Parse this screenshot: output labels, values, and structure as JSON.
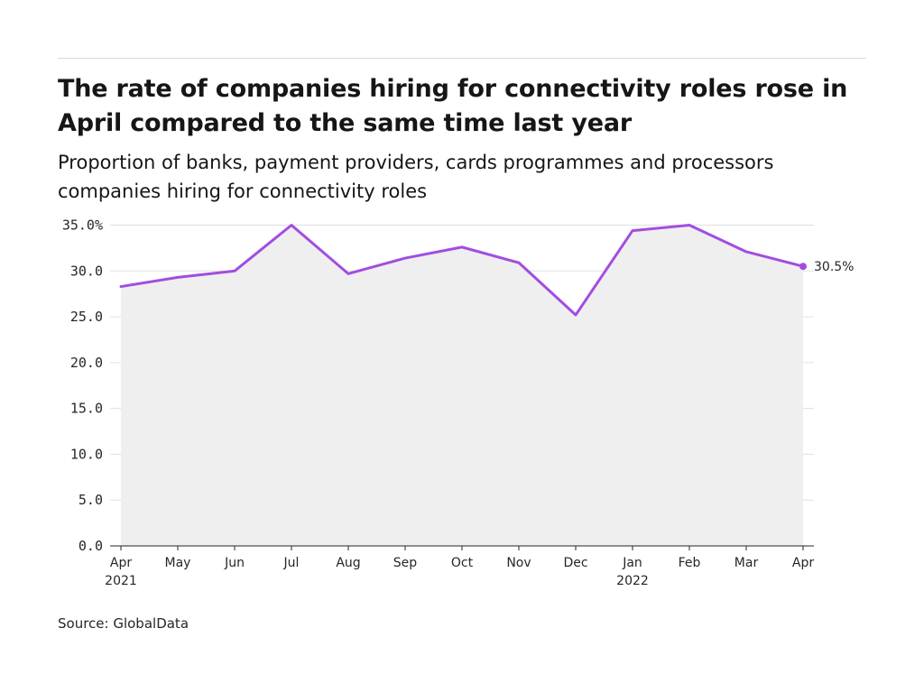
{
  "header": {
    "title": "The rate of companies hiring for connectivity roles rose in April compared to the same time last year",
    "subtitle": "Proportion of banks, payment providers, cards programmes and processors companies hiring for connectivity roles"
  },
  "footer": {
    "source": "Source: GlobalData"
  },
  "colors": {
    "line": "#a24de0",
    "area": "#efefef",
    "grid": "#e0e0e0",
    "axis": "#262626"
  },
  "chart_data": {
    "type": "line",
    "title": "The rate of companies hiring for connectivity roles rose in April compared to the same time last year",
    "subtitle": "Proportion of banks, payment providers, cards programmes and processors companies hiring for connectivity roles",
    "categories": [
      "Apr 2021",
      "May",
      "Jun",
      "Jul",
      "Aug",
      "Sep",
      "Oct",
      "Nov",
      "Dec",
      "Jan 2022",
      "Feb",
      "Mar",
      "Apr"
    ],
    "x_tick_labels": [
      [
        "Apr",
        "2021"
      ],
      [
        "May"
      ],
      [
        "Jun"
      ],
      [
        "Jul"
      ],
      [
        "Aug"
      ],
      [
        "Sep"
      ],
      [
        "Oct"
      ],
      [
        "Nov"
      ],
      [
        "Dec"
      ],
      [
        "Jan",
        "2022"
      ],
      [
        "Feb"
      ],
      [
        "Mar"
      ],
      [
        "Apr"
      ]
    ],
    "series": [
      {
        "values": [
          28.3,
          29.3,
          30.0,
          35.0,
          29.7,
          31.4,
          32.6,
          30.9,
          25.2,
          34.4,
          35.0,
          32.1,
          30.5
        ]
      }
    ],
    "ylim": [
      0,
      35
    ],
    "y_ticks": [
      0,
      5,
      10,
      15,
      20,
      25,
      30,
      35
    ],
    "y_tick_labels": [
      "0.0",
      "5.0",
      "10.0",
      "15.0",
      "20.0",
      "25.0",
      "30.0",
      "35.0%"
    ],
    "end_label": "30.5%",
    "grid": true,
    "fill_area": true
  }
}
